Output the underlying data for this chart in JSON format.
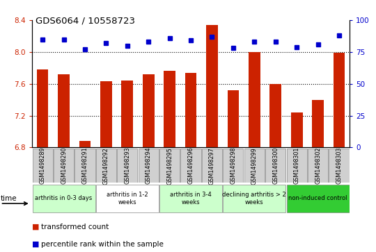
{
  "title": "GDS6064 / 10558723",
  "samples": [
    "GSM1498289",
    "GSM1498290",
    "GSM1498291",
    "GSM1498292",
    "GSM1498293",
    "GSM1498294",
    "GSM1498295",
    "GSM1498296",
    "GSM1498297",
    "GSM1498298",
    "GSM1498299",
    "GSM1498300",
    "GSM1498301",
    "GSM1498302",
    "GSM1498303"
  ],
  "bar_values": [
    7.78,
    7.72,
    6.88,
    7.63,
    7.64,
    7.72,
    7.76,
    7.74,
    8.34,
    7.52,
    8.0,
    7.6,
    7.24,
    7.4,
    7.99
  ],
  "percentile_values": [
    85,
    85,
    77,
    82,
    80,
    83,
    86,
    84,
    87,
    78,
    83,
    83,
    79,
    81,
    88
  ],
  "groups": [
    {
      "label": "arthritis in 0-3 days",
      "start": 0,
      "end": 3,
      "color": "#ccffcc"
    },
    {
      "label": "arthritis in 1-2\nweeks",
      "start": 3,
      "end": 6,
      "color": "#ffffff"
    },
    {
      "label": "arthritis in 3-4\nweeks",
      "start": 6,
      "end": 9,
      "color": "#ccffcc"
    },
    {
      "label": "declining arthritis > 2\nweeks",
      "start": 9,
      "end": 12,
      "color": "#ccffcc"
    },
    {
      "label": "non-induced control",
      "start": 12,
      "end": 15,
      "color": "#33cc33"
    }
  ],
  "ylim_left": [
    6.8,
    8.4
  ],
  "ylim_right": [
    0,
    100
  ],
  "yticks_left": [
    6.8,
    7.2,
    7.6,
    8.0,
    8.4
  ],
  "yticks_right": [
    0,
    25,
    50,
    75,
    100
  ],
  "bar_color": "#cc2200",
  "dot_color": "#0000cc",
  "bar_width": 0.55,
  "bar_bottom": 6.8,
  "legend_items": [
    "transformed count",
    "percentile rank within the sample"
  ],
  "legend_colors": [
    "#cc2200",
    "#0000cc"
  ],
  "group_border_color": "#888888",
  "tick_box_color": "#d0d0d0",
  "tick_box_border": "#888888"
}
